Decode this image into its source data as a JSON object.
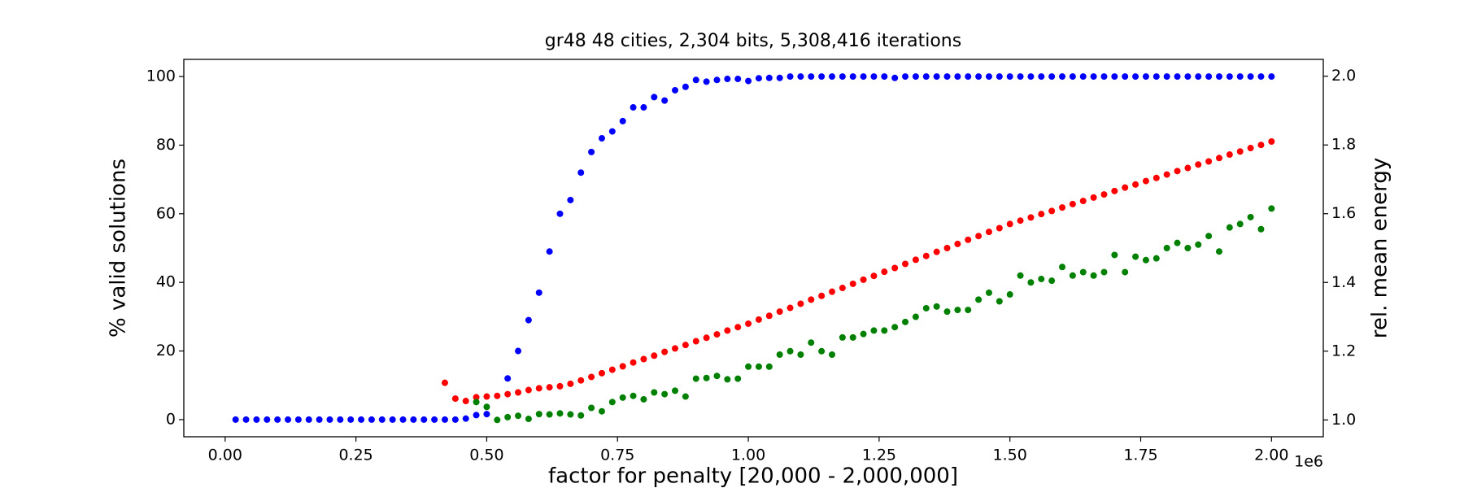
{
  "chart_data": {
    "type": "scatter",
    "title": "gr48 48 cities, 2,304 bits, 5,308,416 iterations",
    "xlabel": "factor for penalty [20,000 - 2,000,000]",
    "x_offset_label": "1e6",
    "ylabel": "% valid solutions",
    "y2label": "rel. mean energy",
    "xlim": [
      -79000,
      2099000
    ],
    "xticks": [
      {
        "value": 0,
        "label": "0.00"
      },
      {
        "value": 250000,
        "label": "0.25"
      },
      {
        "value": 500000,
        "label": "0.50"
      },
      {
        "value": 750000,
        "label": "0.75"
      },
      {
        "value": 1000000,
        "label": "1.00"
      },
      {
        "value": 1250000,
        "label": "1.25"
      },
      {
        "value": 1500000,
        "label": "1.50"
      },
      {
        "value": 1750000,
        "label": "1.75"
      },
      {
        "value": 2000000,
        "label": "2.00"
      }
    ],
    "ylim": [
      -5,
      105
    ],
    "yticks": [
      0,
      20,
      40,
      60,
      80,
      100
    ],
    "y2lim": [
      0.951,
      2.049
    ],
    "y2ticks": [
      {
        "value": 1.0,
        "label": "1.0"
      },
      {
        "value": 1.2,
        "label": "1.2"
      },
      {
        "value": 1.4,
        "label": "1.4"
      },
      {
        "value": 1.6,
        "label": "1.6"
      },
      {
        "value": 1.8,
        "label": "1.8"
      },
      {
        "value": 2.0,
        "label": "2.0"
      }
    ],
    "x": [
      20000,
      40000,
      60000,
      80000,
      100000,
      120000,
      140000,
      160000,
      180000,
      200000,
      220000,
      240000,
      260000,
      280000,
      300000,
      320000,
      340000,
      360000,
      380000,
      400000,
      420000,
      440000,
      460000,
      480000,
      500000,
      520000,
      540000,
      560000,
      580000,
      600000,
      620000,
      640000,
      660000,
      680000,
      700000,
      720000,
      740000,
      760000,
      780000,
      800000,
      820000,
      840000,
      860000,
      880000,
      900000,
      920000,
      940000,
      960000,
      980000,
      1000000,
      1020000,
      1040000,
      1060000,
      1080000,
      1100000,
      1120000,
      1140000,
      1160000,
      1180000,
      1200000,
      1220000,
      1240000,
      1260000,
      1280000,
      1300000,
      1320000,
      1340000,
      1360000,
      1380000,
      1400000,
      1420000,
      1440000,
      1460000,
      1480000,
      1500000,
      1520000,
      1540000,
      1560000,
      1580000,
      1600000,
      1620000,
      1640000,
      1660000,
      1680000,
      1700000,
      1720000,
      1740000,
      1760000,
      1780000,
      1800000,
      1820000,
      1840000,
      1860000,
      1880000,
      1900000,
      1920000,
      1940000,
      1960000,
      1980000,
      2000000
    ],
    "series": [
      {
        "color": "#0000ff",
        "axis": "y",
        "values": [
          0,
          0,
          0,
          0,
          0,
          0,
          0,
          0,
          0,
          0,
          0,
          0,
          0,
          0,
          0,
          0,
          0,
          0,
          0,
          0,
          0,
          0,
          0.3,
          1.3,
          1.6,
          null,
          12,
          20,
          29,
          37,
          49,
          60,
          64,
          72,
          78,
          82,
          84,
          87,
          91,
          91,
          94,
          93,
          96,
          97,
          99,
          98.5,
          99,
          99.3,
          99.3,
          98.7,
          99.5,
          99.6,
          99.6,
          100,
          100,
          100,
          100,
          100,
          100,
          100,
          100,
          100,
          100,
          99.6,
          100,
          100,
          100,
          100,
          100,
          100,
          100,
          100,
          100,
          100,
          100,
          100,
          100,
          100,
          100,
          100,
          100,
          100,
          100,
          100,
          100,
          100,
          100,
          100,
          100,
          100,
          100,
          100,
          100,
          100,
          100,
          100,
          100,
          100,
          100,
          100
        ]
      },
      {
        "color": "#ff0000",
        "axis": "y2",
        "values": [
          null,
          null,
          null,
          null,
          null,
          null,
          null,
          null,
          null,
          null,
          null,
          null,
          null,
          null,
          null,
          null,
          null,
          null,
          null,
          null,
          1.108,
          1.062,
          1.055,
          1.066,
          1.068,
          1.07,
          1.075,
          1.08,
          1.087,
          1.092,
          1.095,
          1.098,
          1.105,
          1.115,
          1.125,
          1.136,
          1.146,
          1.156,
          1.167,
          1.177,
          1.187,
          1.198,
          1.208,
          1.218,
          1.229,
          1.239,
          1.249,
          1.26,
          1.27,
          1.28,
          1.292,
          1.303,
          1.315,
          1.326,
          1.338,
          1.35,
          1.361,
          1.373,
          1.384,
          1.396,
          1.408,
          1.419,
          1.431,
          1.442,
          1.454,
          1.466,
          1.477,
          1.489,
          1.5,
          1.512,
          1.524,
          1.535,
          1.547,
          1.558,
          1.57,
          1.58,
          1.589,
          1.599,
          1.608,
          1.618,
          1.628,
          1.637,
          1.647,
          1.656,
          1.666,
          1.676,
          1.685,
          1.695,
          1.704,
          1.714,
          1.724,
          1.733,
          1.743,
          1.752,
          1.762,
          1.772,
          1.781,
          1.791,
          1.8,
          1.81
        ]
      },
      {
        "color": "#008000",
        "axis": "y2",
        "values": [
          null,
          null,
          null,
          null,
          null,
          null,
          null,
          null,
          null,
          null,
          null,
          null,
          null,
          null,
          null,
          null,
          null,
          null,
          null,
          null,
          null,
          null,
          null,
          1.052,
          1.038,
          1.0,
          1.008,
          1.012,
          1.003,
          1.017,
          1.016,
          1.019,
          1.016,
          1.013,
          1.035,
          1.025,
          1.052,
          1.065,
          1.07,
          1.06,
          1.08,
          1.075,
          1.085,
          1.068,
          1.12,
          1.122,
          1.128,
          1.118,
          1.12,
          1.155,
          1.155,
          1.155,
          1.19,
          1.2,
          1.19,
          1.225,
          1.2,
          1.19,
          1.24,
          1.24,
          1.25,
          1.26,
          1.26,
          1.27,
          1.285,
          1.3,
          1.325,
          1.33,
          1.315,
          1.32,
          1.32,
          1.35,
          1.37,
          1.345,
          1.365,
          1.42,
          1.4,
          1.41,
          1.405,
          1.445,
          1.42,
          1.43,
          1.42,
          1.43,
          1.48,
          1.43,
          1.475,
          1.465,
          1.47,
          1.5,
          1.515,
          1.5,
          1.51,
          1.535,
          1.49,
          1.56,
          1.57,
          1.59,
          1.555,
          1.615
        ]
      }
    ]
  }
}
